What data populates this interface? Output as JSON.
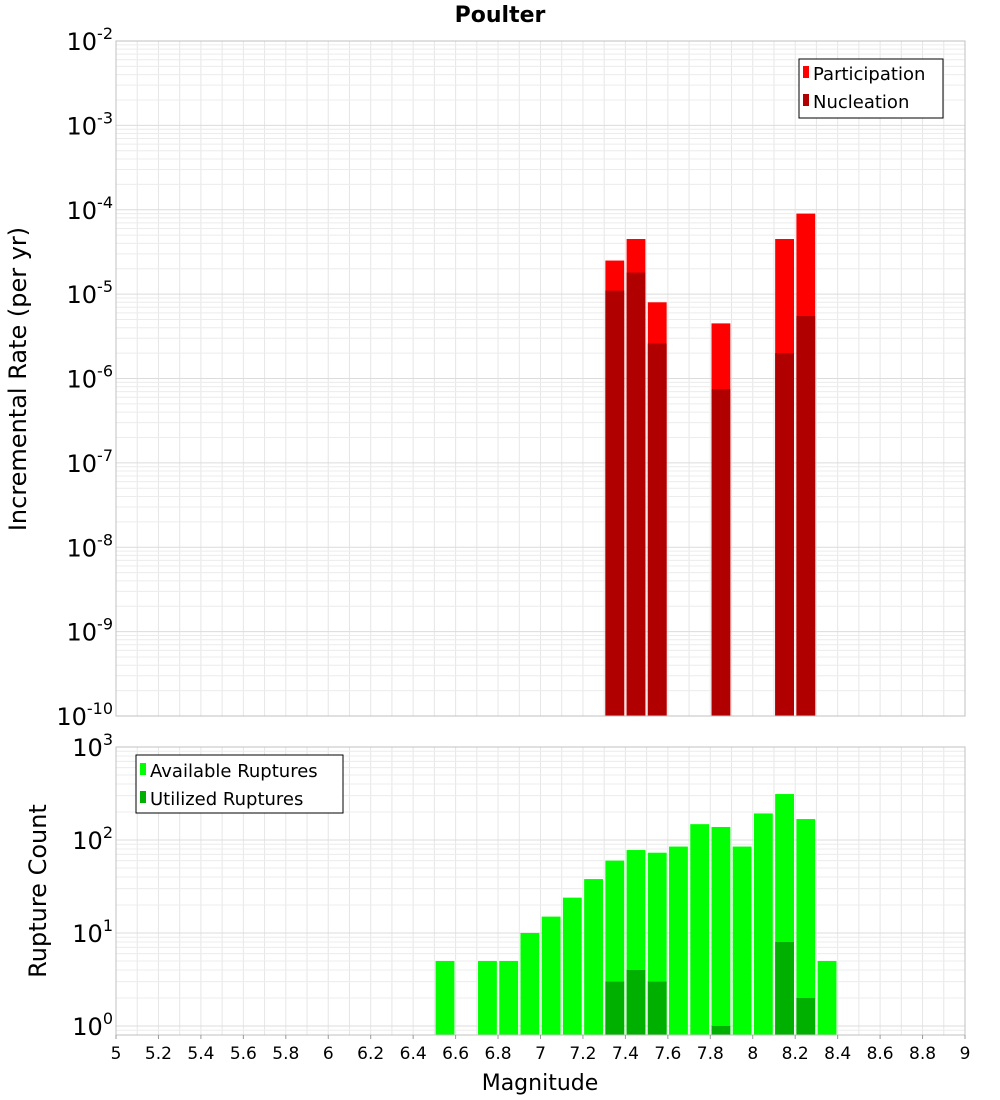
{
  "chart_data": [
    {
      "type": "bar",
      "title": "Poulter",
      "xlabel": "",
      "ylabel": "Incremental Rate (per yr)",
      "yscale": "log",
      "xlim": [
        5,
        9
      ],
      "ylim": [
        1e-10,
        0.01
      ],
      "grid": true,
      "legend_position": "top-right",
      "ytick_labels": [
        {
          "base": "10",
          "exp": "-10",
          "value": 1e-10
        },
        {
          "base": "10",
          "exp": "-9",
          "value": 1e-09
        },
        {
          "base": "10",
          "exp": "-8",
          "value": 1e-08
        },
        {
          "base": "10",
          "exp": "-7",
          "value": 1e-07
        },
        {
          "base": "10",
          "exp": "-6",
          "value": 1e-06
        },
        {
          "base": "10",
          "exp": "-5",
          "value": 1e-05
        },
        {
          "base": "10",
          "exp": "-4",
          "value": 0.0001
        },
        {
          "base": "10",
          "exp": "-3",
          "value": 0.001
        },
        {
          "base": "10",
          "exp": "-2",
          "value": 0.01
        }
      ],
      "x": [
        7.35,
        7.45,
        7.55,
        7.85,
        8.15,
        8.25
      ],
      "series": [
        {
          "name": "Participation",
          "color": "#ff0000",
          "values": [
            2.5e-05,
            4.5e-05,
            8e-06,
            4.5e-06,
            4.5e-05,
            9e-05
          ]
        },
        {
          "name": "Nucleation",
          "color": "#b00000",
          "values": [
            1.1e-05,
            1.8e-05,
            2.6e-06,
            7.5e-07,
            2e-06,
            5.5e-06
          ]
        }
      ]
    },
    {
      "type": "bar",
      "title": "",
      "xlabel": "Magnitude",
      "ylabel": "Rupture Count",
      "yscale": "log",
      "xlim": [
        5,
        9
      ],
      "ylim": [
        0.8,
        1000
      ],
      "grid": true,
      "legend_position": "top-left",
      "xtick_labels": [
        "5",
        "5.2",
        "5.4",
        "5.6",
        "5.8",
        "6",
        "6.2",
        "6.4",
        "6.6",
        "6.8",
        "7",
        "7.2",
        "7.4",
        "7.6",
        "7.8",
        "8",
        "8.2",
        "8.4",
        "8.6",
        "8.8",
        "9"
      ],
      "xtick_values": [
        5,
        5.2,
        5.4,
        5.6,
        5.8,
        6,
        6.2,
        6.4,
        6.6,
        6.8,
        7,
        7.2,
        7.4,
        7.6,
        7.8,
        8,
        8.2,
        8.4,
        8.6,
        8.8,
        9
      ],
      "ytick_labels": [
        {
          "base": "10",
          "exp": "0",
          "value": 1
        },
        {
          "base": "10",
          "exp": "1",
          "value": 10
        },
        {
          "base": "10",
          "exp": "2",
          "value": 100
        },
        {
          "base": "10",
          "exp": "3",
          "value": 1000
        }
      ],
      "x": [
        6.55,
        6.75,
        6.85,
        6.95,
        7.05,
        7.15,
        7.25,
        7.35,
        7.45,
        7.55,
        7.65,
        7.75,
        7.85,
        7.95,
        8.05,
        8.15,
        8.25,
        8.35
      ],
      "series": [
        {
          "name": "Available Ruptures",
          "color": "#00ff00",
          "values": [
            5,
            5,
            5,
            10,
            15,
            24,
            38,
            60,
            78,
            73,
            85,
            148,
            138,
            85,
            193,
            312,
            168,
            5
          ]
        },
        {
          "name": "Utilized Ruptures",
          "color": "#00b000",
          "values": [
            0,
            0,
            0,
            0,
            0,
            0,
            0,
            3,
            4,
            3,
            0,
            0,
            1,
            0,
            0,
            8,
            2,
            0
          ]
        }
      ]
    }
  ]
}
